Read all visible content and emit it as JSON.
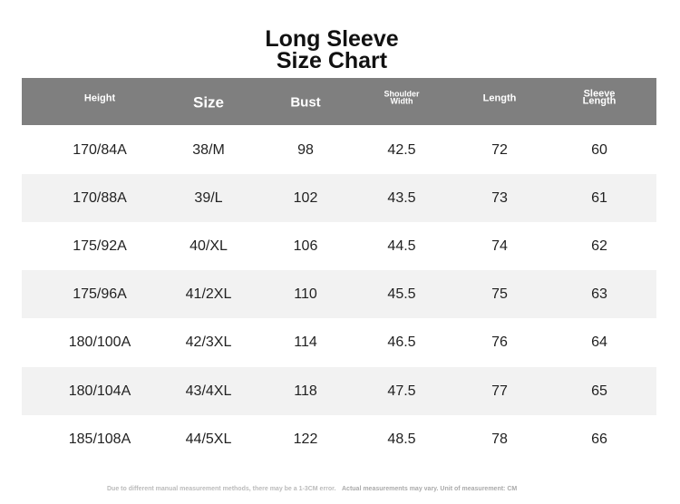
{
  "title": [
    "Long Sleeve",
    "Size Chart"
  ],
  "table": {
    "header": [
      "Height",
      "Size",
      "Bust",
      [
        "Shoulder",
        "Width"
      ],
      "Length",
      [
        "Sleeve",
        "Length"
      ]
    ],
    "rows": [
      [
        "170/84A",
        "38/M",
        "98",
        "42.5",
        "72",
        "60"
      ],
      [
        "170/88A",
        "39/L",
        "102",
        "43.5",
        "73",
        "61"
      ],
      [
        "175/92A",
        "40/XL",
        "106",
        "44.5",
        "74",
        "62"
      ],
      [
        "175/96A",
        "41/2XL",
        "110",
        "45.5",
        "75",
        "63"
      ],
      [
        "180/100A",
        "42/3XL",
        "114",
        "46.5",
        "76",
        "64"
      ],
      [
        "180/104A",
        "43/4XL",
        "118",
        "47.5",
        "77",
        "65"
      ],
      [
        "185/108A",
        "44/5XL",
        "122",
        "48.5",
        "78",
        "66"
      ]
    ]
  },
  "footer": [
    "Due to different manual measurement methods, there may be a 1-3CM error.",
    "Actual measurements may vary. Unit of measurement: CM"
  ]
}
